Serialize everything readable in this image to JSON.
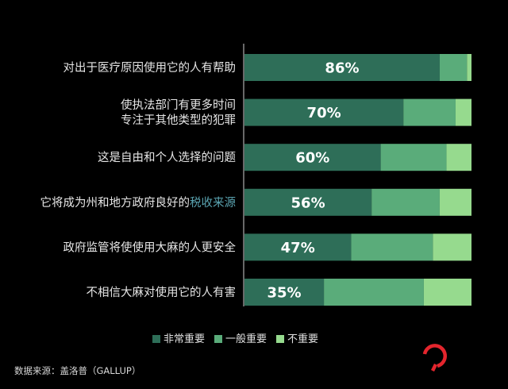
{
  "chart_data": {
    "type": "bar",
    "stacked": true,
    "orientation": "horizontal",
    "categories": [
      [
        "对出于医疗原因使用它的人有帮助"
      ],
      [
        "使执法部门有更多时间",
        "专注于其他类型的犯罪"
      ],
      [
        "这是自由和个人选择的问题"
      ],
      [
        "它将成为州和地方政府良好的",
        "税收来源"
      ],
      [
        "政府监管将使使用大麻的人更安全"
      ],
      [
        "不相信大麻对使用它的人有害"
      ]
    ],
    "series": [
      {
        "name": "非常重要",
        "values": [
          86,
          70,
          60,
          56,
          47,
          35
        ]
      },
      {
        "name": "一般重要",
        "values": [
          12,
          23,
          29,
          30,
          36,
          44
        ]
      },
      {
        "name": "不重要",
        "values": [
          2,
          7,
          11,
          14,
          17,
          21
        ]
      }
    ],
    "value_labels": [
      "86%",
      "70%",
      "60%",
      "56%",
      "47%",
      "35%"
    ],
    "xlim": [
      0,
      100
    ],
    "legend_position": "bottom-center",
    "grid": false
  },
  "colors": {
    "background": "#000000",
    "very_important": "#2e6e58",
    "somewhat_important": "#5aac7a",
    "not_important": "#96da8e",
    "label_accent": "#5aa3b0",
    "logo": "#e4252d"
  },
  "source": "数据来源：盖洛普（GALLUP）",
  "logo_icon": "red-hook-logo-icon"
}
